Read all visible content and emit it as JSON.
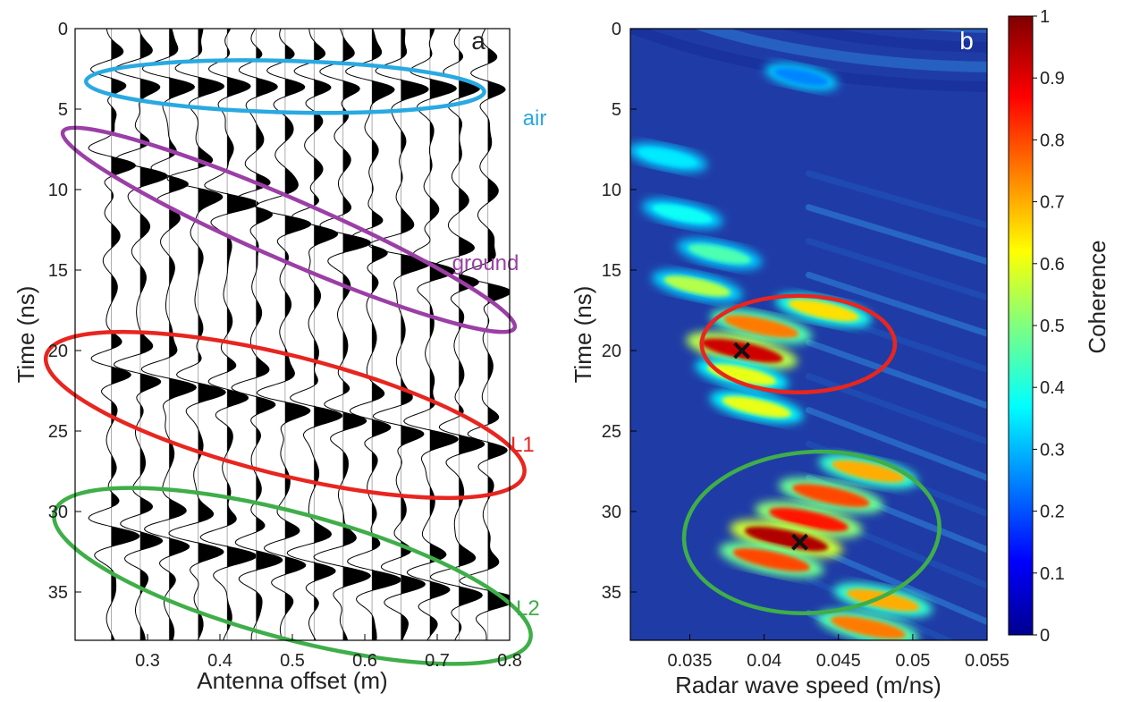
{
  "chart_data": [
    {
      "panel": "a",
      "type": "line",
      "subtype": "wiggle-trace seismogram",
      "xlabel": "Antenna offset (m)",
      "ylabel": "Time (ns)",
      "xlim": [
        0.2,
        0.8
      ],
      "ylim": [
        38,
        0
      ],
      "xticks": [
        0.3,
        0.4,
        0.5,
        0.6,
        0.7,
        0.8
      ],
      "yticks": [
        0,
        5,
        10,
        15,
        20,
        25,
        30,
        35
      ],
      "trace_offsets": [
        0.25,
        0.29,
        0.33,
        0.37,
        0.41,
        0.45,
        0.49,
        0.53,
        0.57,
        0.61,
        0.65,
        0.69,
        0.73,
        0.77
      ],
      "events": [
        {
          "name": "air",
          "t0": 3.0,
          "slope": 0.5,
          "color": "#29a9e1"
        },
        {
          "name": "ground",
          "t0": 8.0,
          "slope": 15.0,
          "color": "#9b3fa6"
        },
        {
          "name": "L1",
          "t0": 21.0,
          "slope": 9.0,
          "color": "#e8251f"
        },
        {
          "name": "L2",
          "t0": 31.0,
          "slope": 7.5,
          "color": "#3fae49"
        }
      ],
      "annotations": [
        {
          "text": "air",
          "color": "#29a9e1",
          "ellipse": {
            "x_center": 0.49,
            "t_center": 3.6,
            "x_radius": 0.275,
            "t_radius": 1.6,
            "tilt_deg": 1.5
          }
        },
        {
          "text": "ground",
          "color": "#9b3fa6",
          "ellipse": {
            "x_center": 0.495,
            "t_center": 12.5,
            "x_radius": 0.34,
            "t_radius": 1.9,
            "tilt_deg": 23.5
          }
        },
        {
          "text": "L1",
          "color": "#e8251f",
          "ellipse": {
            "x_center": 0.49,
            "t_center": 24.0,
            "x_radius": 0.34,
            "t_radius": 3.7,
            "tilt_deg": 14
          }
        },
        {
          "text": "L2",
          "color": "#3fae49",
          "ellipse": {
            "x_center": 0.5,
            "t_center": 34.0,
            "x_radius": 0.34,
            "t_radius": 3.9,
            "tilt_deg": 15
          }
        }
      ],
      "panel_label": "a"
    },
    {
      "panel": "b",
      "type": "heatmap",
      "xlabel": "Radar wave speed (m/ns)",
      "ylabel": "Time (ns)",
      "xlim": [
        0.031,
        0.055
      ],
      "ylim": [
        38,
        0
      ],
      "xticks": [
        0.035,
        0.04,
        0.045,
        0.05,
        0.055
      ],
      "xtick_labels": [
        "0.035",
        "0.04",
        "0.045",
        "0.05",
        "0.055"
      ],
      "yticks": [
        0,
        5,
        10,
        15,
        20,
        25,
        30,
        35
      ],
      "colorbar": {
        "label": "Coherence",
        "range": [
          0,
          1
        ],
        "ticks": [
          0,
          0.1,
          0.2,
          0.3,
          0.4,
          0.5,
          0.6,
          0.7,
          0.8,
          0.9,
          1
        ],
        "tick_labels": [
          "0",
          "0.1",
          "0.2",
          "0.3",
          "0.4",
          "0.5",
          "0.6",
          "0.7",
          "0.8",
          "0.9",
          "1"
        ],
        "colormap": "jet"
      },
      "coherence_peaks": [
        {
          "t": 3.0,
          "v": 0.0425,
          "c": 0.25
        },
        {
          "t": 8.0,
          "v": 0.0335,
          "c": 0.35
        },
        {
          "t": 11.5,
          "v": 0.0345,
          "c": 0.38
        },
        {
          "t": 14.0,
          "v": 0.037,
          "c": 0.45
        },
        {
          "t": 16.0,
          "v": 0.0355,
          "c": 0.55
        },
        {
          "t": 17.5,
          "v": 0.044,
          "c": 0.65
        },
        {
          "t": 18.5,
          "v": 0.0398,
          "c": 0.75
        },
        {
          "t": 20.0,
          "v": 0.0385,
          "c": 0.92
        },
        {
          "t": 21.5,
          "v": 0.0385,
          "c": 0.6
        },
        {
          "t": 23.5,
          "v": 0.0395,
          "c": 0.6
        },
        {
          "t": 27.5,
          "v": 0.047,
          "c": 0.7
        },
        {
          "t": 29.0,
          "v": 0.0445,
          "c": 0.8
        },
        {
          "t": 30.5,
          "v": 0.043,
          "c": 0.85
        },
        {
          "t": 31.7,
          "v": 0.0415,
          "c": 0.95
        },
        {
          "t": 33.0,
          "v": 0.0405,
          "c": 0.8
        },
        {
          "t": 35.5,
          "v": 0.048,
          "c": 0.7
        },
        {
          "t": 37.2,
          "v": 0.047,
          "c": 0.75
        }
      ],
      "markers": [
        {
          "label": "x",
          "v": 0.0385,
          "t": 20.0
        },
        {
          "label": "x",
          "v": 0.0424,
          "t": 31.9
        }
      ],
      "annotations": [
        {
          "color": "#e8251f",
          "ellipse": {
            "v_center": 0.0423,
            "t_center": 19.6,
            "v_radius": 0.0065,
            "t_radius": 3.0,
            "tilt_deg": 0
          }
        },
        {
          "color": "#3fae49",
          "ellipse": {
            "v_center": 0.0432,
            "t_center": 31.3,
            "v_radius": 0.0086,
            "t_radius": 5.0,
            "tilt_deg": -4
          }
        }
      ],
      "panel_label": "b"
    }
  ]
}
